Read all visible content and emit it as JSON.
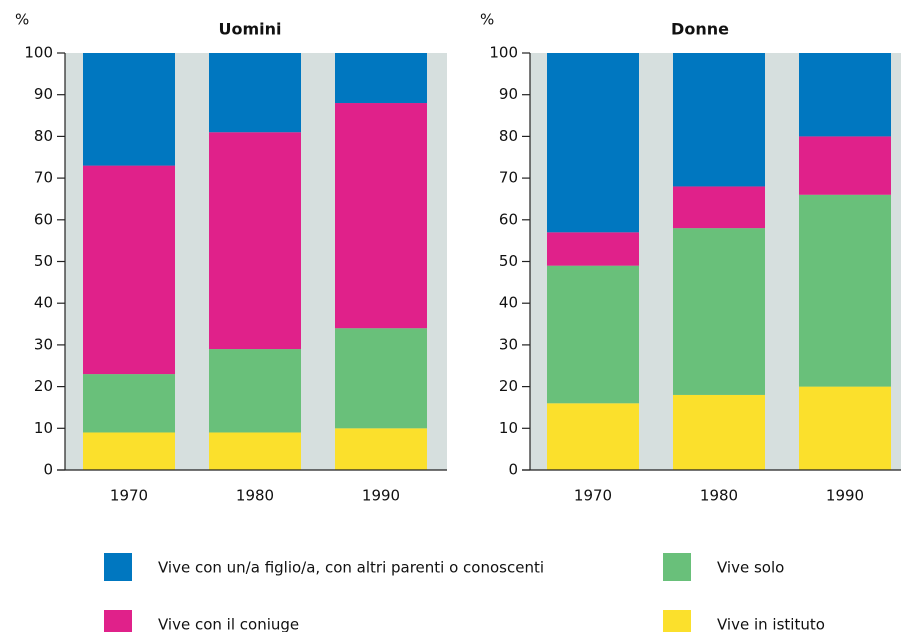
{
  "chart_data": [
    {
      "type": "stacked_bar",
      "title": "Uomini",
      "ylabel": "%",
      "categories": [
        "1970",
        "1980",
        "1990"
      ],
      "series": [
        {
          "name": "Vive in istituto",
          "color": "#fbe02c",
          "values": [
            9,
            9,
            10
          ]
        },
        {
          "name": "Vive solo",
          "color": "#69c07a",
          "values": [
            14,
            20,
            24
          ]
        },
        {
          "name": "Vive con il coniuge",
          "color": "#e0218a",
          "values": [
            50,
            52,
            54
          ]
        },
        {
          "name": "Vive con un/a figlio/a, con altri parenti o conoscenti",
          "color": "#0077c0",
          "values": [
            27,
            19,
            12
          ]
        }
      ],
      "ylim": [
        0,
        100
      ],
      "yticks": [
        0,
        10,
        20,
        30,
        40,
        50,
        60,
        70,
        80,
        90,
        100
      ]
    },
    {
      "type": "stacked_bar",
      "title": "Donne",
      "ylabel": "%",
      "categories": [
        "1970",
        "1980",
        "1990"
      ],
      "series": [
        {
          "values": [
            16,
            18,
            20
          ]
        },
        {
          "values": [
            33,
            40,
            46
          ]
        },
        {
          "values": [
            8,
            10,
            14
          ]
        },
        {
          "values": [
            43,
            32,
            20
          ]
        }
      ],
      "ylim": [
        0,
        100
      ],
      "yticks": [
        0,
        10,
        20,
        30,
        40,
        50,
        60,
        70,
        80,
        90,
        100
      ]
    }
  ]
}
